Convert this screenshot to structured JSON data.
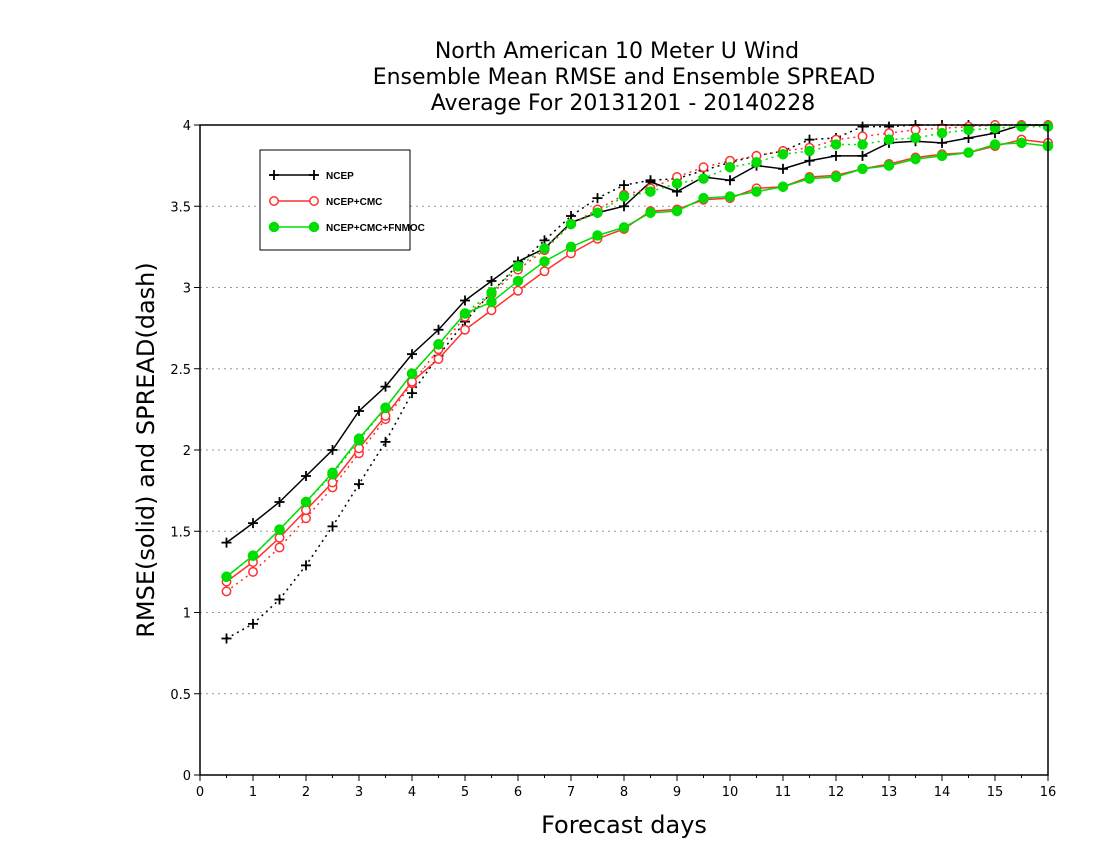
{
  "chart_data": {
    "type": "line",
    "title_lines": [
      "North American 10 Meter U Wind",
      "Ensemble Mean RMSE and Ensemble SPREAD",
      "Average For 20131201 - 20140228"
    ],
    "xlabel": "Forecast days",
    "ylabel": "RMSE(solid) and SPREAD(dash)",
    "xlim": [
      0,
      16
    ],
    "ylim": [
      0,
      4
    ],
    "xticks": [
      "0",
      "1",
      "2",
      "3",
      "4",
      "5",
      "6",
      "7",
      "8",
      "9",
      "10",
      "11",
      "12",
      "13",
      "14",
      "15",
      "16"
    ],
    "yticks": [
      "0",
      "0.5",
      "1",
      "1.5",
      "2",
      "2.5",
      "3",
      "3.5",
      "4"
    ],
    "grid": "horizontal dotted",
    "legend_position": "top-left",
    "x": [
      0.5,
      1,
      1.5,
      2,
      2.5,
      3,
      3.5,
      4,
      4.5,
      5,
      5.5,
      6,
      6.5,
      7,
      7.5,
      8,
      8.5,
      9,
      9.5,
      10,
      10.5,
      11,
      11.5,
      12,
      12.5,
      13,
      13.5,
      14,
      14.5,
      15,
      15.5,
      16
    ],
    "series": [
      {
        "name": "NCEP",
        "color": "#000000",
        "marker": "plus",
        "rmse": [
          1.43,
          1.55,
          1.68,
          1.84,
          2.0,
          2.24,
          2.39,
          2.59,
          2.74,
          2.92,
          3.04,
          3.16,
          3.24,
          3.4,
          3.46,
          3.5,
          3.65,
          3.59,
          3.68,
          3.66,
          3.75,
          3.73,
          3.78,
          3.81,
          3.81,
          3.89,
          3.9,
          3.89,
          3.92,
          3.95,
          4.02,
          4.02
        ],
        "spread": [
          0.84,
          0.93,
          1.08,
          1.29,
          1.53,
          1.79,
          2.05,
          2.35,
          2.58,
          2.79,
          2.97,
          3.14,
          3.29,
          3.44,
          3.55,
          3.63,
          3.66,
          3.67,
          3.72,
          3.77,
          3.81,
          3.84,
          3.91,
          3.92,
          3.99,
          3.99,
          4.0,
          4.0,
          4.01,
          4.01,
          4.02,
          4.02
        ]
      },
      {
        "name": "NCEP+CMC",
        "color": "#ff3030",
        "marker": "open-circle",
        "rmse": [
          1.19,
          1.31,
          1.46,
          1.63,
          1.8,
          2.01,
          2.21,
          2.42,
          2.56,
          2.74,
          2.86,
          2.98,
          3.1,
          3.21,
          3.3,
          3.36,
          3.47,
          3.48,
          3.54,
          3.55,
          3.61,
          3.62,
          3.68,
          3.69,
          3.73,
          3.76,
          3.8,
          3.82,
          3.83,
          3.87,
          3.91,
          3.89
        ],
        "spread": [
          1.13,
          1.25,
          1.4,
          1.58,
          1.77,
          1.98,
          2.19,
          2.41,
          2.62,
          2.82,
          2.96,
          3.11,
          3.23,
          3.39,
          3.48,
          3.57,
          3.61,
          3.68,
          3.74,
          3.78,
          3.81,
          3.84,
          3.86,
          3.91,
          3.93,
          3.95,
          3.97,
          3.98,
          3.99,
          4.0,
          4.0,
          4.0
        ]
      },
      {
        "name": "NCEP+CMC+FNMOC",
        "color": "#00dd00",
        "marker": "filled-circle",
        "rmse": [
          1.22,
          1.35,
          1.51,
          1.68,
          1.86,
          2.07,
          2.26,
          2.47,
          2.65,
          2.84,
          2.91,
          3.04,
          3.16,
          3.25,
          3.32,
          3.37,
          3.46,
          3.47,
          3.55,
          3.56,
          3.59,
          3.62,
          3.67,
          3.68,
          3.73,
          3.75,
          3.79,
          3.81,
          3.83,
          3.88,
          3.89,
          3.87
        ],
        "spread": [
          1.22,
          1.35,
          1.51,
          1.68,
          1.85,
          2.06,
          2.26,
          2.47,
          2.65,
          2.84,
          2.97,
          3.13,
          3.24,
          3.39,
          3.46,
          3.56,
          3.59,
          3.64,
          3.67,
          3.74,
          3.77,
          3.82,
          3.84,
          3.88,
          3.88,
          3.91,
          3.92,
          3.95,
          3.97,
          3.98,
          3.99,
          3.99
        ]
      }
    ]
  }
}
